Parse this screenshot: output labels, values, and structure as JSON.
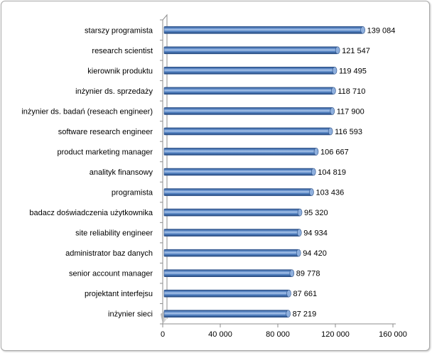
{
  "chart_data": {
    "type": "bar",
    "orientation": "horizontal",
    "style": "3d-cylinder",
    "categories": [
      "starszy programista",
      "research scientist",
      "kierownik produktu",
      "inżynier ds. sprzedaży",
      "inżynier ds. badań (reseach engineer)",
      "software research engineer",
      "product marketing manager",
      "analityk finansowy",
      "programista",
      "badacz doświadczenia użytkownika",
      "site reliability engineer",
      "administrator baz danych",
      "senior account manager",
      "projektant interfejsu",
      "inżynier sieci"
    ],
    "values": [
      139084,
      121547,
      119495,
      118710,
      117900,
      116593,
      106667,
      104819,
      103436,
      95320,
      94934,
      94420,
      89778,
      87661,
      87219
    ],
    "value_labels": [
      "139 084",
      "121 547",
      "119 495",
      "118 710",
      "117 900",
      "116 593",
      "106 667",
      "104 819",
      "103 436",
      "95 320",
      "94 934",
      "94 420",
      "89 778",
      "87 661",
      "87 219"
    ],
    "x_ticks": [
      0,
      40000,
      80000,
      120000,
      160000
    ],
    "x_tick_labels": [
      "0",
      "40 000",
      "80 000",
      "120 000",
      "160 000"
    ],
    "xlim": [
      0,
      160000
    ],
    "title": "",
    "xlabel": "",
    "ylabel": "",
    "grid": false,
    "legend": "none",
    "colors": {
      "bar_main": "#4f81bd",
      "bar_light": "#a9c4ea",
      "bar_dark": "#2b4f86",
      "bar_cap": "#8fb0de",
      "axis": "#8c8c8c"
    }
  }
}
